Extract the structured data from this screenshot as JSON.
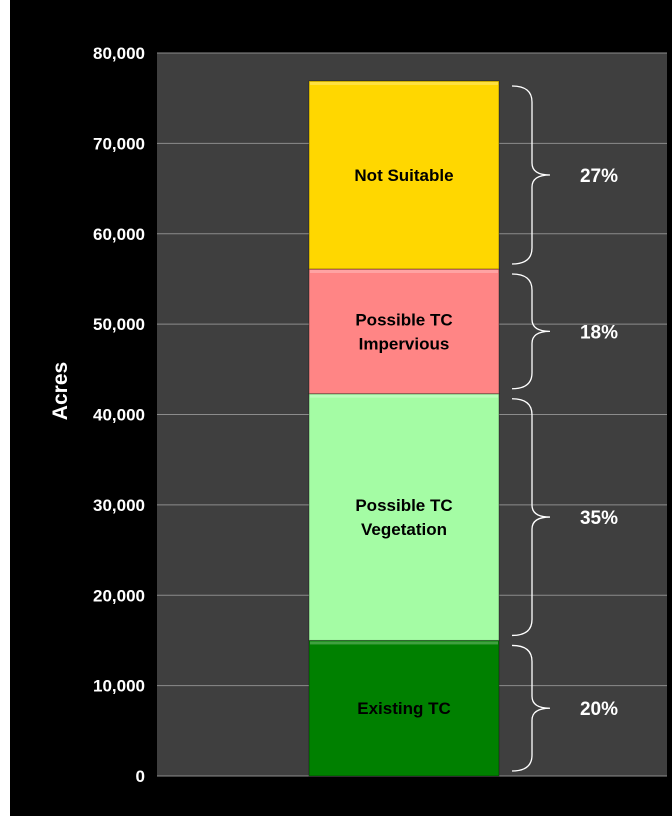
{
  "chart_data": {
    "type": "bar",
    "stacked": true,
    "title": "",
    "xlabel": "",
    "ylabel": "Acres",
    "ylim": [
      0,
      80000
    ],
    "yticks": [
      "0",
      "10,000",
      "20,000",
      "30,000",
      "40,000",
      "50,000",
      "60,000",
      "70,000",
      "80,000"
    ],
    "grid": true,
    "legend": "none",
    "categories": [
      ""
    ],
    "series": [
      {
        "label_lines": [
          "Existing TC"
        ],
        "values": [
          15000
        ],
        "percent": "20%",
        "color": "#008000"
      },
      {
        "label_lines": [
          "Possible TC",
          "Vegetation"
        ],
        "values": [
          27300
        ],
        "percent": "35%",
        "color": "#a4fca4"
      },
      {
        "label_lines": [
          "Possible TC",
          "Impervious"
        ],
        "values": [
          13800
        ],
        "percent": "18%",
        "color": "#ff8585"
      },
      {
        "label_lines": [
          "Not Suitable"
        ],
        "values": [
          20800
        ],
        "percent": "27%",
        "color": "#ffd700"
      }
    ],
    "colors": {
      "background": "#000000",
      "plot_area": "#3f3f3f",
      "gridline": "#8c8c8c",
      "text": "#ffffff",
      "brace": "#ffffff"
    }
  }
}
